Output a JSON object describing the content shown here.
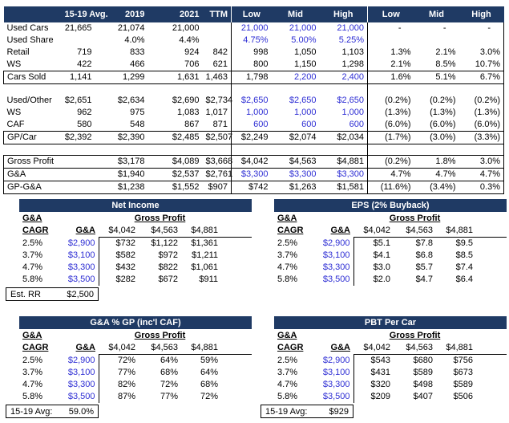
{
  "colors": {
    "navy": "#1f3a64",
    "blue": "#2e2ed4",
    "border": "#000000",
    "header_text": "#ffffff"
  },
  "main_table": {
    "headers": [
      "",
      "15-19 Avg.",
      "2019",
      "2021",
      "TTM",
      "Low",
      "Mid",
      "High",
      "Low",
      "Mid",
      "High"
    ],
    "rows": [
      {
        "label": "Used Cars",
        "cells": [
          "21,665",
          "21,074",
          "21,000",
          "",
          "21,000",
          "21,000",
          "21,000",
          "-",
          "-",
          "-"
        ],
        "blue": [
          4,
          5,
          6
        ],
        "box": null
      },
      {
        "label": "Used Share",
        "cells": [
          "",
          "4.0%",
          "4.4%",
          "",
          "4.75%",
          "5.00%",
          "5.25%",
          "",
          "",
          ""
        ],
        "blue": [
          4,
          5,
          6
        ],
        "box": null
      },
      {
        "label": "Retail",
        "cells": [
          "719",
          "833",
          "924",
          "842",
          "998",
          "1,050",
          "1,103",
          "1.3%",
          "2.1%",
          "3.0%"
        ],
        "blue": [],
        "box": null
      },
      {
        "label": "WS",
        "cells": [
          "422",
          "466",
          "706",
          "621",
          "800",
          "1,150",
          "1,298",
          "2.1%",
          "8.5%",
          "10.7%"
        ],
        "blue": [],
        "box": null
      },
      {
        "label": "Cars Sold",
        "cells": [
          "1,141",
          "1,299",
          "1,631",
          "1,463",
          "1,798",
          "2,200",
          "2,400",
          "1.6%",
          "5.1%",
          "6.7%"
        ],
        "blue": [
          5,
          6
        ],
        "box": "row"
      },
      {
        "blank": true
      },
      {
        "label": "Used/Other",
        "cells": [
          "$2,651",
          "$2,634",
          "$2,690",
          "$2,734",
          "$2,650",
          "$2,650",
          "$2,650",
          "(0.2%)",
          "(0.2%)",
          "(0.2%)"
        ],
        "blue": [
          4,
          5,
          6
        ],
        "box": null
      },
      {
        "label": "WS",
        "cells": [
          "962",
          "975",
          "1,083",
          "1,017",
          "1,000",
          "1,000",
          "1,000",
          "(1.3%)",
          "(1.3%)",
          "(1.3%)"
        ],
        "blue": [
          4,
          5,
          6
        ],
        "box": null
      },
      {
        "label": "CAF",
        "cells": [
          "580",
          "548",
          "867",
          "871",
          "600",
          "600",
          "600",
          "(6.0%)",
          "(6.0%)",
          "(6.0%)"
        ],
        "blue": [
          4,
          5,
          6
        ],
        "box": null
      },
      {
        "label": "GP/Car",
        "cells": [
          "$2,392",
          "$2,390",
          "$2,485",
          "$2,507",
          "$2,249",
          "$2,074",
          "$2,034",
          "(1.7%)",
          "(3.0%)",
          "(3.3%)"
        ],
        "blue": [],
        "box": "row"
      },
      {
        "blank": true
      },
      {
        "label": "Gross Profit",
        "cells": [
          "",
          "$3,178",
          "$4,089",
          "$3,668",
          "$4,042",
          "$4,563",
          "$4,881",
          "(0.2%)",
          "1.8%",
          "3.0%"
        ],
        "blue": [],
        "box": "top"
      },
      {
        "label": "G&A",
        "cells": [
          "",
          "$1,940",
          "$2,537",
          "$2,761",
          "$3,300",
          "$3,300",
          "$3,300",
          "4.7%",
          "4.7%",
          "4.7%"
        ],
        "blue": [
          4,
          5,
          6
        ],
        "box": "mid"
      },
      {
        "label": "GP-G&A",
        "cells": [
          "",
          "$1,238",
          "$1,552",
          "$907",
          "$742",
          "$1,263",
          "$1,581",
          "(11.6%)",
          "(3.4%)",
          "0.3%"
        ],
        "blue": [],
        "box": "bot"
      }
    ]
  },
  "subtables": {
    "shared": {
      "ga_label": "G&A",
      "cagr_label": "CAGR",
      "ga_col_label": "G&A",
      "gp_label": "Gross Profit",
      "gp_cols": [
        "$4,042",
        "$4,563",
        "$4,881"
      ],
      "cagr_values": [
        "2.5%",
        "3.7%",
        "4.7%",
        "5.8%"
      ],
      "ga_values": [
        "$2,900",
        "$3,100",
        "$3,300",
        "$3,500"
      ]
    },
    "net_income": {
      "title": "Net Income",
      "rows": [
        [
          "$732",
          "$1,122",
          "$1,361"
        ],
        [
          "$582",
          "$972",
          "$1,211"
        ],
        [
          "$432",
          "$822",
          "$1,061"
        ],
        [
          "$282",
          "$672",
          "$911"
        ]
      ],
      "footer": {
        "label": "Est. RR",
        "value": "$2,500"
      }
    },
    "eps": {
      "title": "EPS (2% Buyback)",
      "rows": [
        [
          "$5.1",
          "$7.8",
          "$9.5"
        ],
        [
          "$4.1",
          "$6.8",
          "$8.5"
        ],
        [
          "$3.0",
          "$5.7",
          "$7.4"
        ],
        [
          "$2.0",
          "$4.7",
          "$6.4"
        ]
      ]
    },
    "ga_pct_gp": {
      "title": "G&A % GP (inc'l CAF)",
      "rows": [
        [
          "72%",
          "64%",
          "59%"
        ],
        [
          "77%",
          "68%",
          "64%"
        ],
        [
          "82%",
          "72%",
          "68%"
        ],
        [
          "87%",
          "77%",
          "72%"
        ]
      ],
      "footer": {
        "label": "15-19 Avg:",
        "value": "59.0%"
      }
    },
    "pbt_per_car": {
      "title": "PBT Per Car",
      "rows": [
        [
          "$543",
          "$680",
          "$756"
        ],
        [
          "$431",
          "$589",
          "$673"
        ],
        [
          "$320",
          "$498",
          "$589"
        ],
        [
          "$209",
          "$407",
          "$506"
        ]
      ],
      "footer": {
        "label": "15-19 Avg:",
        "value": "$929"
      }
    }
  }
}
